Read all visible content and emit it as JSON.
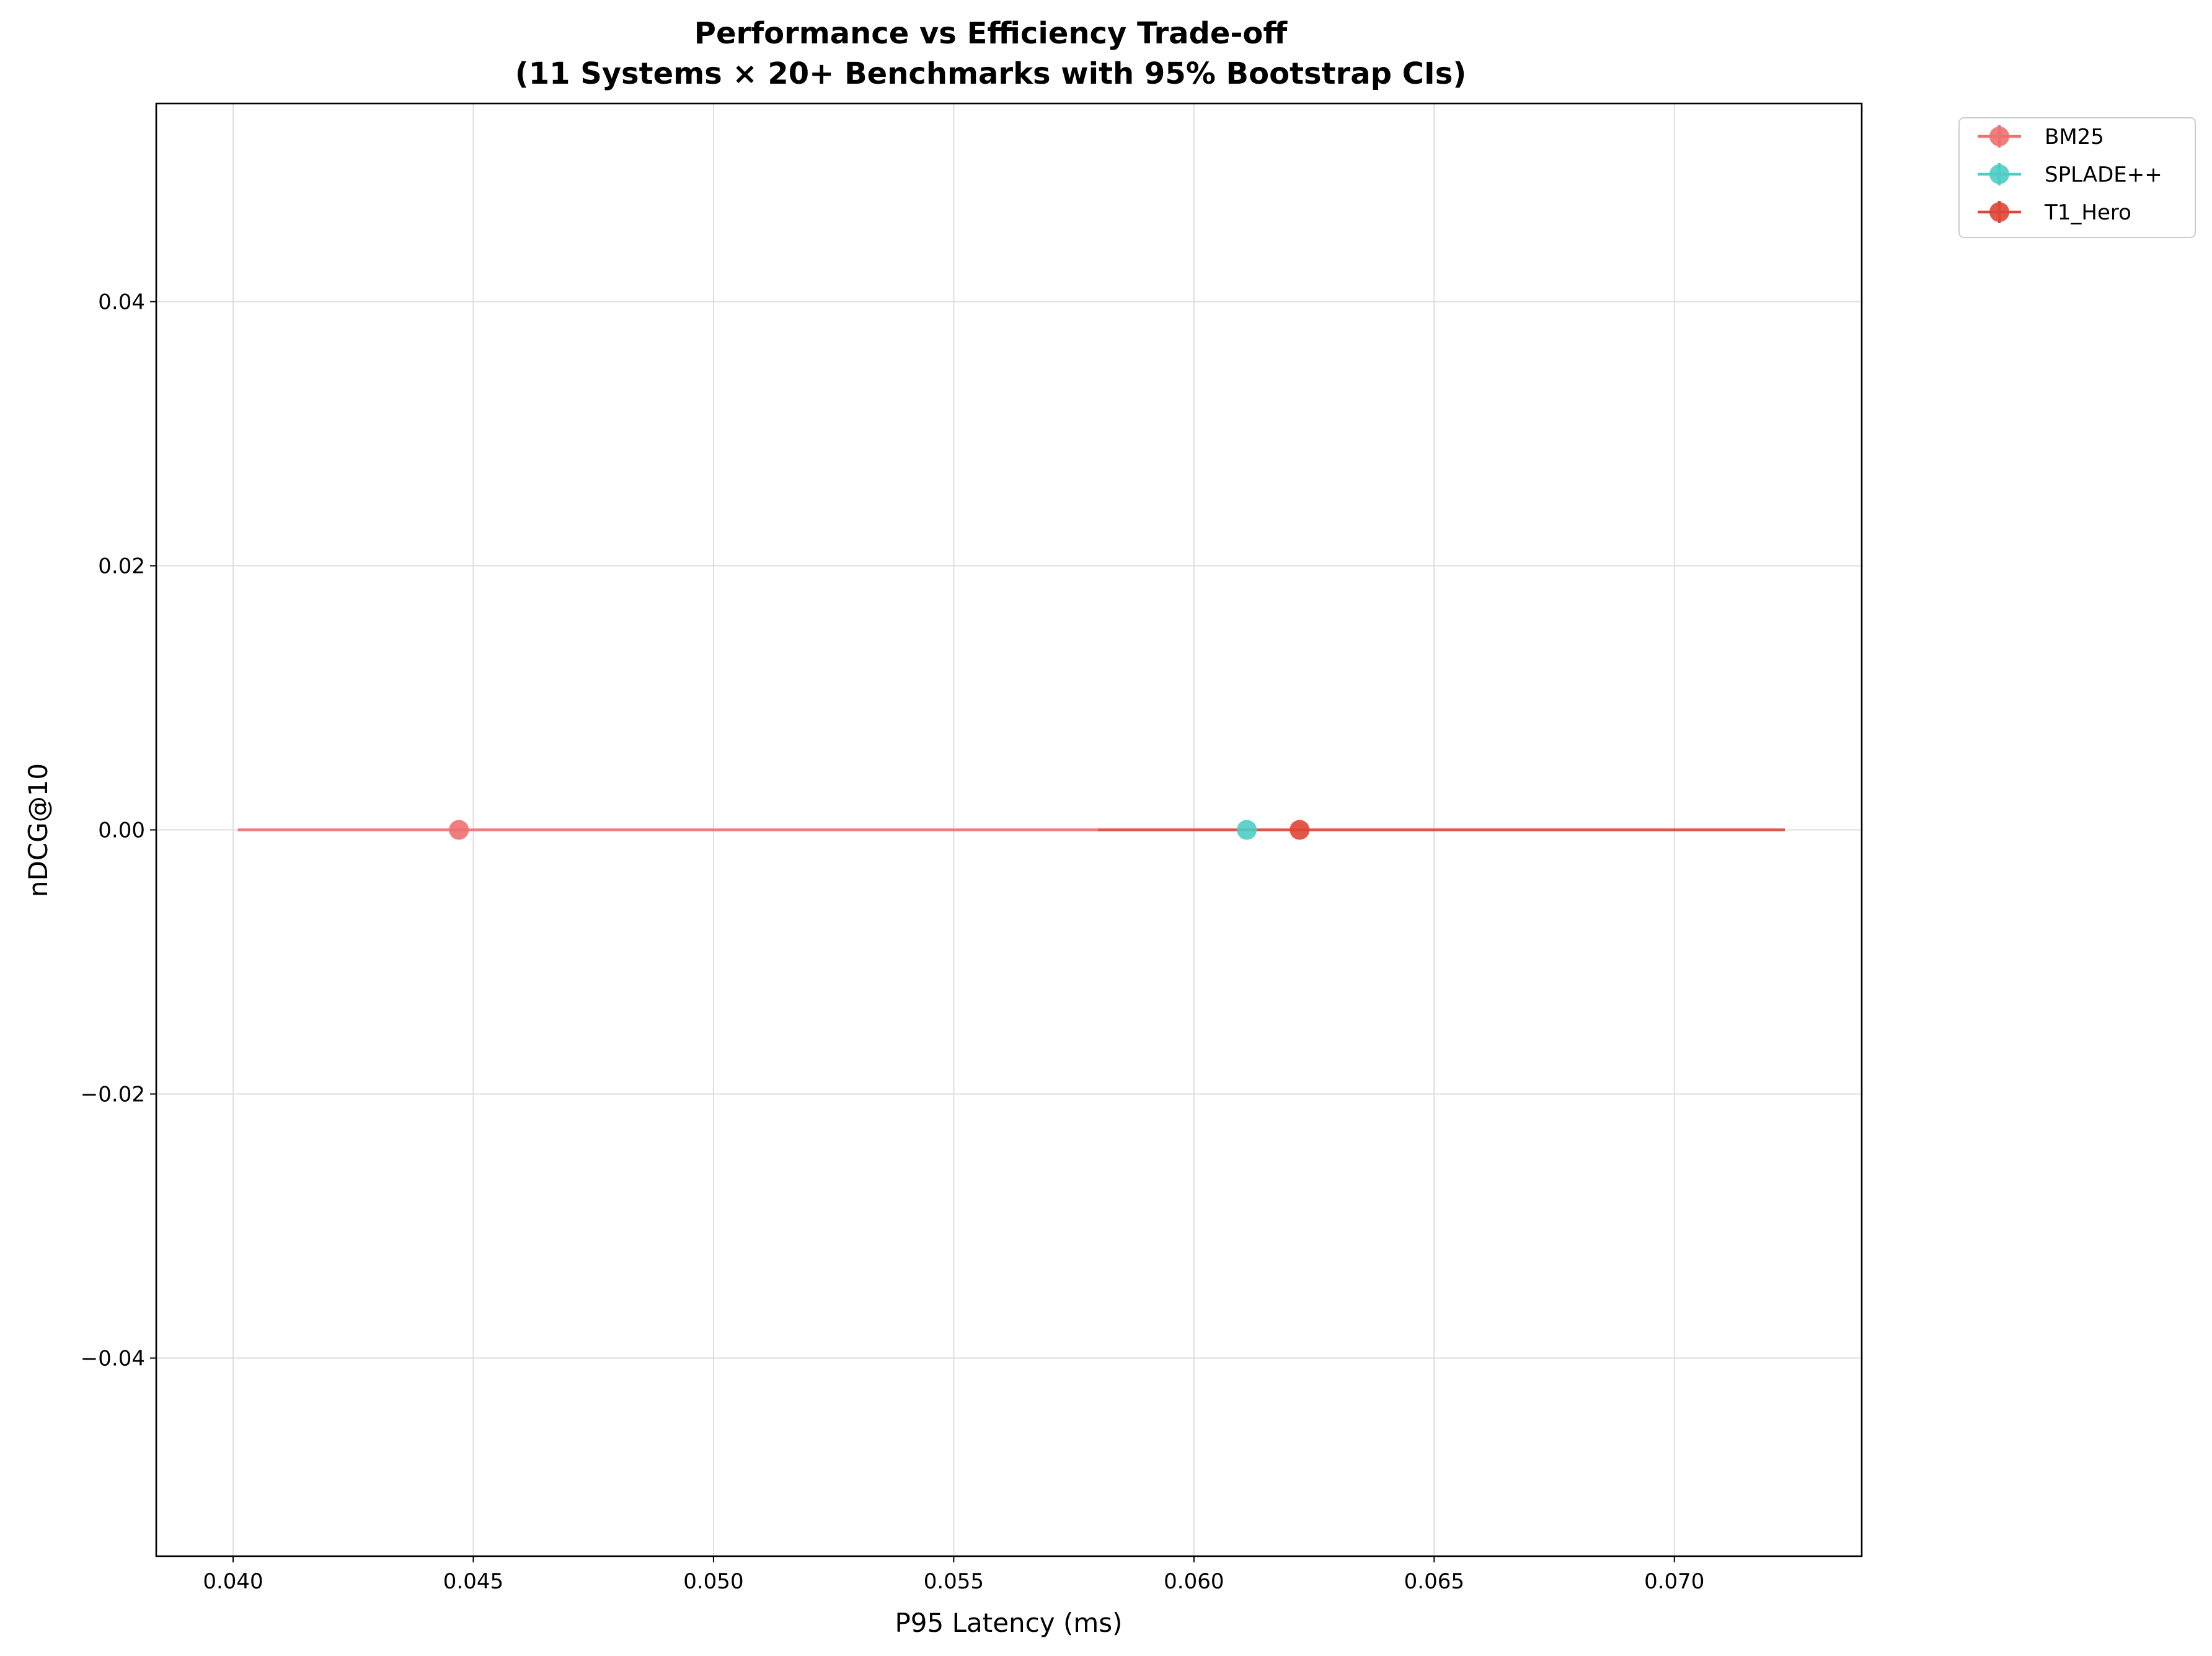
{
  "chart_data": {
    "type": "scatter",
    "title": "Performance vs Efficiency Trade-off",
    "subtitle": "(11 Systems × 20+ Benchmarks with 95% Bootstrap CIs)",
    "xlabel": "P95 Latency (ms)",
    "ylabel": "nDCG@10",
    "xlim": [
      0.0384,
      0.0739
    ],
    "ylim": [
      -0.055,
      0.055
    ],
    "xticks": [
      0.04,
      0.045,
      0.05,
      0.055,
      0.06,
      0.065,
      0.07
    ],
    "xtick_labels": [
      "0.040",
      "0.045",
      "0.050",
      "0.055",
      "0.060",
      "0.065",
      "0.070"
    ],
    "yticks": [
      0.04,
      0.02,
      0.0,
      -0.02,
      -0.04
    ],
    "ytick_labels": [
      "0.04",
      "0.02",
      "0.00",
      "−0.02",
      "−0.04"
    ],
    "grid": true,
    "legend_position": "outside-top-right",
    "series": [
      {
        "name": "BM25",
        "color": "#f07070",
        "x": 0.0447,
        "y": 0.0,
        "x_err": [
          0.0401,
          0.058
        ]
      },
      {
        "name": "SPLADE++",
        "color": "#4ecdc4",
        "x": 0.0611,
        "y": 0.0,
        "x_err": null
      },
      {
        "name": "T1_Hero",
        "color": "#e04535",
        "x": 0.0622,
        "y": 0.0,
        "x_err": [
          0.058,
          0.0723
        ]
      }
    ]
  }
}
